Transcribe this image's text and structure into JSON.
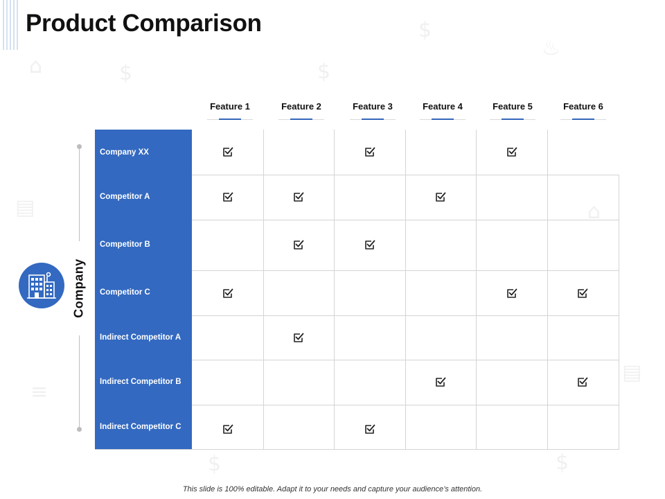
{
  "title": "Product Comparison",
  "features": [
    "Feature 1",
    "Feature 2",
    "Feature 3",
    "Feature 4",
    "Feature 5",
    "Feature 6"
  ],
  "axis_label": "Company",
  "rows": [
    {
      "label": "Company XX",
      "checks": [
        true,
        false,
        true,
        false,
        true,
        false
      ]
    },
    {
      "label": "Competitor A",
      "checks": [
        true,
        true,
        false,
        true,
        false,
        false
      ]
    },
    {
      "label": "Competitor B",
      "checks": [
        false,
        true,
        true,
        false,
        false,
        false
      ]
    },
    {
      "label": "Competitor C",
      "checks": [
        true,
        false,
        false,
        false,
        true,
        true
      ]
    },
    {
      "label": "Indirect Competitor A",
      "checks": [
        false,
        true,
        false,
        false,
        false,
        false
      ]
    },
    {
      "label": "Indirect Competitor B",
      "checks": [
        false,
        false,
        false,
        true,
        false,
        true
      ]
    },
    {
      "label": "Indirect Competitor C",
      "checks": [
        true,
        false,
        true,
        false,
        false,
        false
      ]
    }
  ],
  "footer": "This slide is 100% editable. Adapt it to your needs and capture your audience’s attention.",
  "colors": {
    "accent": "#3369c0",
    "grid": "#d4d4d4",
    "text": "#111111"
  },
  "icons": {
    "company": "building-icon",
    "check": "checkbox-check-icon"
  }
}
